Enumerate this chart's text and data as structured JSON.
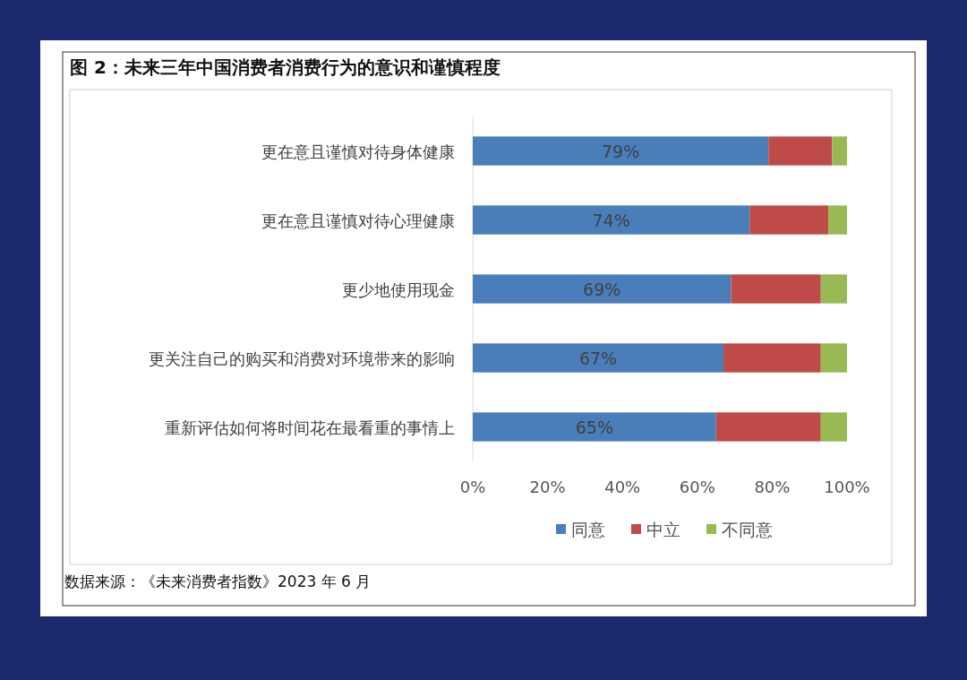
{
  "chart_data": {
    "type": "bar",
    "title": "图 2：未来三年中国消费者消费行为的意识和谨慎程度",
    "orientation": "horizontal",
    "stacked": true,
    "categories": [
      "更在意且谨慎对待身体健康",
      "更在意且谨慎对待心理健康",
      "更少地使用现金",
      "更关注自己的购买和消费对环境带来的影响",
      "重新评估如何将时间花在最看重的事情上"
    ],
    "series": [
      {
        "name": "同意",
        "color": "#4a7ebb",
        "values": [
          79,
          74,
          69,
          67,
          65
        ],
        "value_labels": [
          "79%",
          "74%",
          "69%",
          "67%",
          "65%"
        ]
      },
      {
        "name": "中立",
        "color": "#be4b48",
        "values": [
          17,
          21,
          24,
          26,
          28
        ]
      },
      {
        "name": "不同意",
        "color": "#98b954",
        "values": [
          4,
          5,
          7,
          7,
          7
        ]
      }
    ],
    "xlim": [
      0,
      100
    ],
    "xticks": [
      {
        "value": 0,
        "label": "0%"
      },
      {
        "value": 20,
        "label": "20%"
      },
      {
        "value": 40,
        "label": "40%"
      },
      {
        "value": 60,
        "label": "60%"
      },
      {
        "value": 80,
        "label": "80%"
      },
      {
        "value": 100,
        "label": "100%"
      }
    ],
    "legend": "bottom",
    "annotations": [
      "数据来源：《未来消费者指数》2023 年 6 月"
    ]
  }
}
